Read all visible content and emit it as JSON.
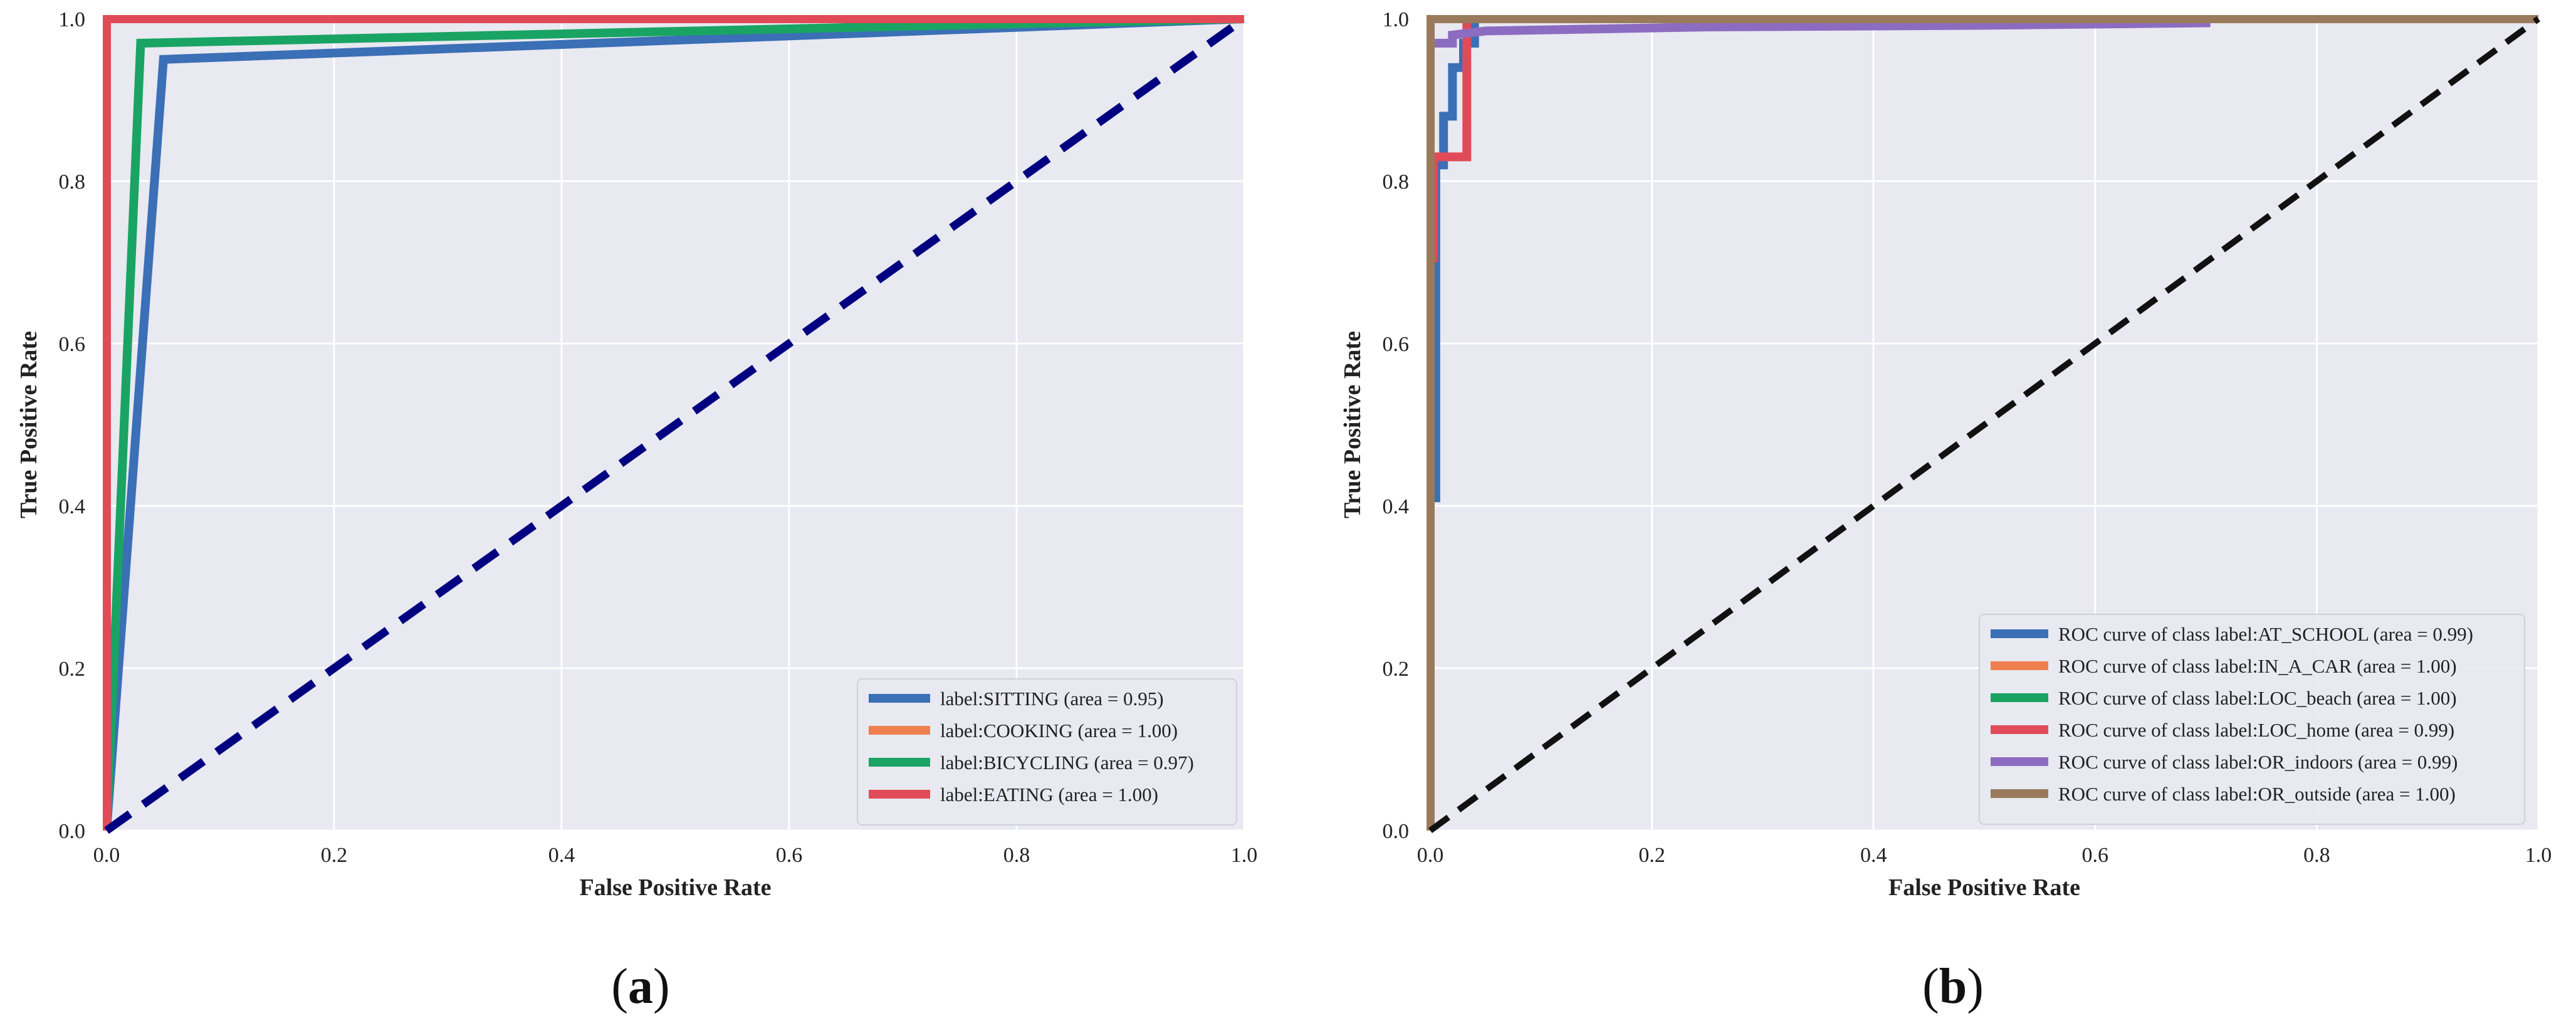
{
  "chart_data": [
    {
      "type": "line",
      "panel_label": "(a)",
      "panel_letter": "a",
      "xlabel": "False Positive Rate",
      "ylabel": "True Positive Rate",
      "xlim": [
        0,
        1
      ],
      "ylim": [
        0,
        1
      ],
      "xticks": [
        "0.0",
        "0.2",
        "0.4",
        "0.6",
        "0.8",
        "1.0"
      ],
      "yticks": [
        "0.0",
        "0.2",
        "0.4",
        "0.6",
        "0.8",
        "1.0"
      ],
      "grid": true,
      "legend_position": "bottom-right",
      "background": "#e8e9f1",
      "diagonal": {
        "color": "#000080",
        "style": "dashed"
      },
      "series": [
        {
          "name": "label:SITTING (area = 0.95)",
          "color": "#3b6fb6",
          "x": [
            0,
            0.05,
            1
          ],
          "y": [
            0,
            0.95,
            1
          ]
        },
        {
          "name": "label:COOKING (area = 1.00)",
          "color": "#ef7f4f",
          "x": [
            0,
            0,
            1
          ],
          "y": [
            0,
            1,
            1
          ]
        },
        {
          "name": "label:BICYCLING (area = 0.97)",
          "color": "#1aa463",
          "x": [
            0,
            0.03,
            1
          ],
          "y": [
            0,
            0.97,
            1
          ]
        },
        {
          "name": "label:EATING (area = 1.00)",
          "color": "#e14b57",
          "x": [
            0,
            0,
            1
          ],
          "y": [
            0,
            1,
            1
          ]
        }
      ]
    },
    {
      "type": "line",
      "panel_label": "(b)",
      "panel_letter": "b",
      "xlabel": "False Positive Rate",
      "ylabel": "True Positive Rate",
      "xlim": [
        0,
        1
      ],
      "ylim": [
        0,
        1
      ],
      "xticks": [
        "0.0",
        "0.2",
        "0.4",
        "0.6",
        "0.8",
        "1.0"
      ],
      "yticks": [
        "0.0",
        "0.2",
        "0.4",
        "0.6",
        "0.8",
        "1.0"
      ],
      "grid": true,
      "legend_position": "bottom-right",
      "background": "#e8e9f1",
      "diagonal": {
        "color": "#111111",
        "style": "dashed"
      },
      "series": [
        {
          "name": "ROC curve of class label:AT_SCHOOL (area = 0.99)",
          "color": "#3b6fb6",
          "x": [
            0,
            0.005,
            0.005,
            0.012,
            0.012,
            0.02,
            0.02,
            0.03,
            0.03,
            0.04,
            0.04,
            1
          ],
          "y": [
            0.41,
            0.41,
            0.82,
            0.82,
            0.88,
            0.88,
            0.94,
            0.94,
            0.97,
            0.97,
            1.0,
            1.0
          ]
        },
        {
          "name": "ROC curve of class label:IN_A_CAR (area = 1.00)",
          "color": "#ef7f4f",
          "x": [
            0,
            0,
            1
          ],
          "y": [
            0,
            1,
            1
          ]
        },
        {
          "name": "ROC curve of class label:LOC_beach (area = 1.00)",
          "color": "#1aa463",
          "x": [
            0,
            0,
            1
          ],
          "y": [
            0,
            1,
            1
          ]
        },
        {
          "name": "ROC curve of class label:LOC_home (area = 0.99)",
          "color": "#e14b57",
          "x": [
            0.003,
            0.003,
            0.01,
            0.01,
            0.033,
            0.033,
            1
          ],
          "y": [
            0.7,
            0.83,
            0.83,
            0.83,
            0.83,
            1.0,
            1.0
          ]
        },
        {
          "name": "ROC curve of class label:OR_indoors (area = 0.99)",
          "color": "#8c6cc0",
          "x": [
            0,
            0,
            0.02,
            0.02,
            0.05,
            0.25,
            0.5,
            0.7,
            0.7,
            1
          ],
          "y": [
            0.82,
            0.97,
            0.97,
            0.98,
            0.985,
            0.99,
            0.992,
            0.995,
            1.0,
            1.0
          ]
        },
        {
          "name": "ROC curve of class label:OR_outside (area = 1.00)",
          "color": "#9a7a5c",
          "x": [
            0,
            0,
            0,
            1
          ],
          "y": [
            0,
            0.9,
            1,
            1
          ]
        }
      ]
    }
  ]
}
